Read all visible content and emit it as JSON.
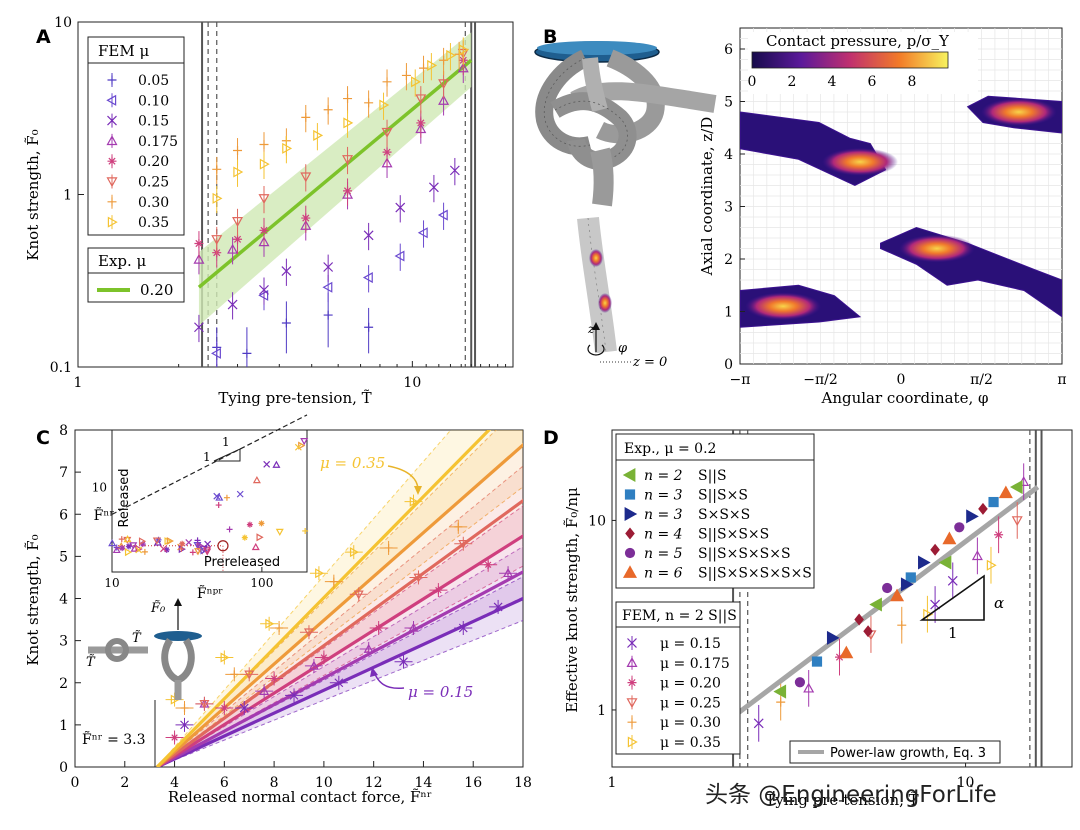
{
  "figure": {
    "watermark": "头条 @EngineeringForLife",
    "panel_labels": [
      "A",
      "B",
      "C",
      "D"
    ]
  },
  "colors": {
    "p005": "#4f3ac4",
    "p010": "#6b4bd0",
    "p015": "#7a2db8",
    "p0175": "#a43bb0",
    "p020": "#cf3f7e",
    "p025": "#e0685e",
    "p030": "#ee9a3a",
    "p035": "#f5c332",
    "green": "#7dc32a",
    "green_band": "#cfe9b4",
    "exp_green": "#79b236",
    "exp_blue": "#2f7fc1",
    "exp_navy": "#1d2a8c",
    "exp_maroon": "#9c1c35",
    "exp_purple": "#7c2e98",
    "exp_orange": "#e8692a"
  },
  "chart_data": [
    {
      "panel": "A",
      "type": "scatter",
      "scale": "log-log",
      "xlabel": "Tying pre-tension, T̃",
      "ylabel": "Knot strength, F̃₀",
      "xlim": [
        1,
        20
      ],
      "ylim": [
        0.1,
        10
      ],
      "xticks": [
        "1",
        "10"
      ],
      "yticks": [
        "0.1",
        "1",
        "10"
      ],
      "legend_title": "FEM  μ",
      "legend_mu": [
        "0.05",
        "0.10",
        "0.15",
        "0.175",
        "0.20",
        "0.25",
        "0.30",
        "0.35"
      ],
      "exp_legend_title": "Exp.  μ",
      "exp_mu": "0.20",
      "fit": {
        "x": [
          2.3,
          15
        ],
        "y": [
          0.29,
          6.0
        ]
      },
      "series": [
        {
          "mu": "0.05",
          "marker": "plus",
          "color_key": "p005",
          "x": [
            2.6,
            3.2,
            4.2,
            5.6,
            7.4
          ],
          "y": [
            0.13,
            0.12,
            0.18,
            0.2,
            0.17
          ],
          "err": [
            0.04,
            0.05,
            0.06,
            0.07,
            0.05
          ]
        },
        {
          "mu": "0.10",
          "marker": "tri-left",
          "color_key": "p010",
          "x": [
            2.6,
            3.6,
            5.6,
            7.4,
            9.2,
            10.8,
            12.4
          ],
          "y": [
            0.12,
            0.26,
            0.29,
            0.33,
            0.44,
            0.6,
            0.76
          ]
        },
        {
          "mu": "0.15",
          "marker": "x",
          "color_key": "p015",
          "x": [
            2.3,
            2.9,
            3.6,
            4.2,
            5.6,
            7.4,
            9.2,
            11.6,
            13.4
          ],
          "y": [
            0.17,
            0.23,
            0.28,
            0.36,
            0.38,
            0.58,
            0.84,
            1.1,
            1.38
          ]
        },
        {
          "mu": "0.175",
          "marker": "tri-up",
          "color_key": "p0175",
          "x": [
            2.3,
            2.9,
            3.6,
            4.8,
            6.4,
            8.4,
            10.6,
            12.4,
            14.2
          ],
          "y": [
            0.42,
            0.48,
            0.53,
            0.66,
            1.0,
            1.52,
            2.4,
            3.5,
            5.4
          ]
        },
        {
          "mu": "0.20",
          "marker": "star",
          "color_key": "p020",
          "x": [
            2.3,
            2.6,
            3.0,
            3.6,
            4.8,
            6.4,
            8.4,
            10.6,
            14.2
          ],
          "y": [
            0.52,
            0.46,
            0.55,
            0.62,
            0.73,
            1.05,
            1.76,
            2.6,
            6.0
          ]
        },
        {
          "mu": "0.25",
          "marker": "tri-down",
          "color_key": "p025",
          "x": [
            2.6,
            3.0,
            3.6,
            4.8,
            6.4,
            8.4,
            10.6,
            12.4,
            14.2
          ],
          "y": [
            0.55,
            0.7,
            0.95,
            1.27,
            1.6,
            2.3,
            3.6,
            4.4,
            6.6
          ]
        },
        {
          "mu": "0.30",
          "marker": "plus",
          "color_key": "p030",
          "x": [
            2.6,
            3.0,
            3.6,
            4.2,
            4.8,
            5.6,
            6.4,
            7.4,
            8.4,
            9.6,
            10.8,
            12.4,
            13.8
          ],
          "y": [
            1.4,
            1.8,
            1.95,
            2.05,
            2.8,
            3.1,
            3.6,
            3.4,
            4.5,
            4.9,
            5.4,
            6.0,
            6.5
          ]
        },
        {
          "mu": "0.35",
          "marker": "tri-right",
          "color_key": "p035",
          "x": [
            2.6,
            3.0,
            3.6,
            4.2,
            5.2,
            6.4,
            8.2,
            10.2,
            11.4,
            13.0,
            14.2
          ],
          "y": [
            0.95,
            1.35,
            1.5,
            1.85,
            2.2,
            2.6,
            3.3,
            4.5,
            5.6,
            6.4,
            6.9
          ]
        }
      ]
    },
    {
      "panel": "B",
      "type": "heatmap",
      "colorbar_title": "Contact pressure, p/σ_Y",
      "colorbar_ticks": [
        "0",
        "2",
        "4",
        "6",
        "8"
      ],
      "xlabel": "Angular coordinate, φ",
      "ylabel": "Axial coordinate, z/D",
      "xticks": [
        "−π",
        "−π/2",
        "0",
        "π/2",
        "π"
      ],
      "yticks": [
        "0",
        "1",
        "2",
        "3",
        "4",
        "5",
        "6"
      ],
      "xlim": [
        -3.1416,
        3.1416
      ],
      "ylim": [
        0,
        6.4
      ],
      "knot_annotations": [
        "z",
        "φ",
        "z = 0"
      ],
      "regions": [
        {
          "phi": [
            -3.14,
            -1.6,
            -1.0,
            -0.6,
            -0.3,
            -0.9,
            -2.0,
            -3.14
          ],
          "z": [
            4.8,
            4.6,
            4.3,
            4.2,
            3.7,
            3.4,
            3.9,
            4.1
          ]
        },
        {
          "phi": [
            1.3,
            1.7,
            3.14,
            3.14,
            2.2,
            1.6
          ],
          "z": [
            4.9,
            5.1,
            5.0,
            4.4,
            4.5,
            4.6
          ]
        },
        {
          "phi": [
            -0.4,
            0.3,
            1.3,
            2.6,
            3.14,
            3.14,
            2.4,
            1.5,
            0.9,
            0.3,
            -0.4
          ],
          "z": [
            2.3,
            2.6,
            2.3,
            1.8,
            1.6,
            0.9,
            1.4,
            1.6,
            1.5,
            1.9,
            2.2
          ]
        },
        {
          "phi": [
            -3.14,
            -2.0,
            -1.3,
            -0.8,
            -1.6,
            -3.14
          ],
          "z": [
            1.4,
            1.5,
            1.3,
            0.9,
            0.8,
            0.7
          ]
        }
      ],
      "hotspots": [
        {
          "phi": -0.8,
          "z": 3.85,
          "p": 9
        },
        {
          "phi": 2.3,
          "z": 4.8,
          "p": 8
        },
        {
          "phi": 0.7,
          "z": 2.2,
          "p": 9
        },
        {
          "phi": -2.3,
          "z": 1.1,
          "p": 8
        }
      ]
    },
    {
      "panel": "C",
      "type": "line",
      "xlabel": "Released normal contact force, F̃ⁿʳ",
      "ylabel": "Knot strength, F̃₀",
      "xlim": [
        0,
        18
      ],
      "ylim": [
        0,
        8
      ],
      "xticks": [
        "0",
        "2",
        "4",
        "6",
        "8",
        "10",
        "12",
        "14",
        "16",
        "18"
      ],
      "yticks": [
        "0",
        "1",
        "2",
        "3",
        "4",
        "5",
        "6",
        "7",
        "8"
      ],
      "threshold_label": "F̃ⁿʳ = 3.3",
      "threshold_x": 3.3,
      "annotations": [
        "μ = 0.35",
        "μ = 0.15"
      ],
      "line_mu": [
        "0.15",
        "0.175",
        "0.20",
        "0.25",
        "0.30",
        "0.35"
      ],
      "slopes": [
        0.272,
        0.315,
        0.373,
        0.43,
        0.52,
        0.6
      ],
      "points": [
        {
          "x": [
            4.4,
            6.8,
            8.8,
            10.6,
            13.2,
            15.6,
            17.0
          ],
          "y": [
            1.0,
            1.4,
            1.7,
            2.0,
            2.5,
            3.3,
            3.8
          ]
        },
        {
          "x": [
            5.2,
            7.6,
            9.6,
            11.8,
            13.6,
            17.4
          ],
          "y": [
            1.5,
            1.8,
            2.4,
            2.8,
            3.3,
            4.6
          ]
        },
        {
          "x": [
            4.0,
            6.0,
            8.0,
            10.0,
            12.2,
            14.6,
            16.6
          ],
          "y": [
            0.7,
            1.4,
            2.1,
            2.6,
            3.3,
            4.2,
            4.8
          ]
        },
        {
          "x": [
            5.2,
            7.0,
            9.4,
            11.4,
            13.8,
            15.6
          ],
          "y": [
            1.5,
            2.2,
            3.2,
            4.1,
            4.5,
            5.3
          ]
        },
        {
          "x": [
            4.4,
            6.4,
            8.2,
            10.4,
            12.6,
            15.4
          ],
          "y": [
            1.4,
            2.2,
            3.3,
            4.4,
            5.2,
            5.7
          ]
        },
        {
          "x": [
            4.0,
            6.0,
            7.8,
            9.8,
            11.2,
            13.6
          ],
          "y": [
            1.6,
            2.6,
            3.4,
            4.6,
            5.1,
            6.3
          ]
        }
      ],
      "inset": {
        "xlabel": "F̃ⁿᵖʳ",
        "ylabel": "F̃ⁿʳ",
        "label_released": "Released",
        "label_prereleased": "Prereleased",
        "slope_label": "1",
        "xticks": [
          "10",
          "100"
        ],
        "yticks": [
          "10"
        ],
        "xlim": [
          10,
          200
        ],
        "ylim": [
          2,
          30
        ]
      },
      "schematic_labels": [
        "T̃",
        "T̃",
        "F̃₀"
      ]
    },
    {
      "panel": "D",
      "type": "scatter",
      "scale": "log-log",
      "xlabel": "Tying pre-tension, T̃",
      "ylabel": "Effective knot strength, F̃₀/nμ",
      "xlim": [
        1,
        20
      ],
      "ylim": [
        0.5,
        30
      ],
      "xticks": [
        "1",
        "10"
      ],
      "yticks": [
        "1",
        "10"
      ],
      "exp_title": "Exp., μ = 0.2",
      "exp_legend": [
        {
          "n": "n = 2",
          "label": "S||S",
          "marker": "tri-left",
          "color_key": "exp_green"
        },
        {
          "n": "n = 3",
          "label": "S||S×S",
          "marker": "square",
          "color_key": "exp_blue"
        },
        {
          "n": "n = 3",
          "label": "S×S×S",
          "marker": "tri-right",
          "color_key": "exp_navy"
        },
        {
          "n": "n = 4",
          "label": "S||S×S×S",
          "marker": "diamond",
          "color_key": "exp_maroon"
        },
        {
          "n": "n = 5",
          "label": "S||S×S×S×S",
          "marker": "circle",
          "color_key": "exp_purple"
        },
        {
          "n": "n = 6",
          "label": "S||S×S×S×S×S",
          "marker": "tri-up",
          "color_key": "exp_orange"
        }
      ],
      "fem_title": "FEM, n = 2 S||S",
      "fem_mu": [
        "μ = 0.15",
        "μ = 0.175",
        "μ = 0.20",
        "μ = 0.25",
        "μ = 0.30",
        "μ = 0.35"
      ],
      "fit_label": "Power-law growth, Eq. 3",
      "slope_label": "α",
      "slope_base": "1",
      "fit": {
        "x": [
          2.2,
          16
        ],
        "y": [
          0.92,
          15
        ]
      },
      "exp_points": [
        {
          "x": 3.0,
          "y": 1.25,
          "k": 0
        },
        {
          "x": 3.8,
          "y": 1.8,
          "k": 1
        },
        {
          "x": 4.2,
          "y": 2.4,
          "k": 2
        },
        {
          "x": 5.0,
          "y": 3.0,
          "k": 3
        },
        {
          "x": 5.6,
          "y": 3.6,
          "k": 0
        },
        {
          "x": 6.0,
          "y": 4.4,
          "k": 4
        },
        {
          "x": 6.4,
          "y": 4.0,
          "k": 5
        },
        {
          "x": 7.0,
          "y": 5.0,
          "k": 1
        },
        {
          "x": 7.6,
          "y": 6.0,
          "k": 2
        },
        {
          "x": 8.2,
          "y": 7.0,
          "k": 3
        },
        {
          "x": 9.0,
          "y": 8.0,
          "k": 5
        },
        {
          "x": 9.6,
          "y": 9.2,
          "k": 4
        },
        {
          "x": 10.4,
          "y": 10.5,
          "k": 2
        },
        {
          "x": 11.2,
          "y": 11.5,
          "k": 3
        },
        {
          "x": 12.0,
          "y": 12.5,
          "k": 1
        },
        {
          "x": 13.0,
          "y": 14.0,
          "k": 5
        },
        {
          "x": 14.0,
          "y": 15.0,
          "k": 0
        },
        {
          "x": 5.3,
          "y": 2.6,
          "k": 3
        },
        {
          "x": 4.6,
          "y": 2.0,
          "k": 5
        },
        {
          "x": 3.4,
          "y": 1.4,
          "k": 4
        },
        {
          "x": 8.8,
          "y": 6.0,
          "k": 0
        },
        {
          "x": 6.8,
          "y": 4.6,
          "k": 2
        }
      ],
      "fem_points": [
        {
          "x": 2.6,
          "y": 0.85,
          "k": 0
        },
        {
          "x": 3.6,
          "y": 1.3,
          "k": 1
        },
        {
          "x": 4.4,
          "y": 1.9,
          "k": 2
        },
        {
          "x": 5.4,
          "y": 2.5,
          "k": 3
        },
        {
          "x": 6.6,
          "y": 2.8,
          "k": 4
        },
        {
          "x": 7.8,
          "y": 3.2,
          "k": 5
        },
        {
          "x": 9.2,
          "y": 4.8,
          "k": 0
        },
        {
          "x": 10.8,
          "y": 6.5,
          "k": 1
        },
        {
          "x": 12.4,
          "y": 8.4,
          "k": 2
        },
        {
          "x": 14.0,
          "y": 10.0,
          "k": 3
        },
        {
          "x": 11.8,
          "y": 5.8,
          "k": 5
        },
        {
          "x": 3.0,
          "y": 1.1,
          "k": 4
        },
        {
          "x": 14.6,
          "y": 16.0,
          "k": 1
        },
        {
          "x": 8.2,
          "y": 3.6,
          "k": 0
        }
      ]
    }
  ]
}
